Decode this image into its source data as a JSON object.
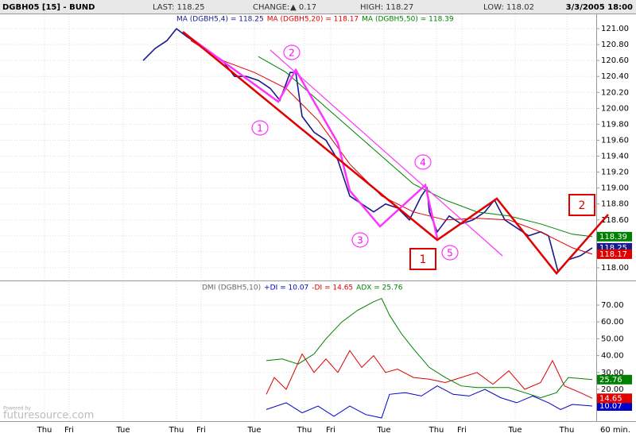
{
  "header": {
    "symbol": "DGBH05 [15] - BUND",
    "last": "LAST: 118.25",
    "change_label": "CHANGE:",
    "change": "▲ 0.17",
    "high": "HIGH: 118.27",
    "low": "LOW: 118.02",
    "datetime": "3/3/2005 18:00",
    "interval": "60 min."
  },
  "watermark": {
    "small": "Powered by",
    "brand": "futuresource.com"
  },
  "annotations": {
    "circled": [
      "1",
      "2",
      "3",
      "4",
      "5"
    ],
    "boxed": [
      "1",
      "2"
    ]
  },
  "chart_data": [
    {
      "type": "line",
      "grid": true,
      "xlim": [
        0,
        750
      ],
      "ylim": [
        117.85,
        121.18
      ],
      "xticks": [
        {
          "value": 56,
          "label": "Thu"
        },
        {
          "value": 87,
          "label": "Fri"
        },
        {
          "value": 155,
          "label": "Tue"
        },
        {
          "value": 222,
          "label": "Thu"
        },
        {
          "value": 253,
          "label": "Fri"
        },
        {
          "value": 320,
          "label": "Tue"
        },
        {
          "value": 383,
          "label": "Thu"
        },
        {
          "value": 416,
          "label": "Fri"
        },
        {
          "value": 483,
          "label": "Tue"
        },
        {
          "value": 549,
          "label": "Thu"
        },
        {
          "value": 581,
          "label": "Fri"
        },
        {
          "value": 648,
          "label": "Tue"
        },
        {
          "value": 713,
          "label": "Thu"
        }
      ],
      "yticks": [
        {
          "value": 118,
          "label": "118.00"
        },
        {
          "value": 118.2,
          "label": "118.20"
        },
        {
          "value": 118.4,
          "label": "118.40"
        },
        {
          "value": 118.6,
          "label": "118.60"
        },
        {
          "value": 118.8,
          "label": "118.80"
        },
        {
          "value": 119,
          "label": "119.00"
        },
        {
          "value": 119.2,
          "label": "119.20"
        },
        {
          "value": 119.4,
          "label": "119.40"
        },
        {
          "value": 119.6,
          "label": "119.60"
        },
        {
          "value": 119.8,
          "label": "119.80"
        },
        {
          "value": 120,
          "label": "120.00"
        },
        {
          "value": 120.2,
          "label": "120.20"
        },
        {
          "value": 120.4,
          "label": "120.40"
        },
        {
          "value": 120.6,
          "label": "120.60"
        },
        {
          "value": 120.8,
          "label": "120.80"
        },
        {
          "value": 121,
          "label": "121.00"
        }
      ],
      "series": [
        {
          "name": "MA (DGBH5,4) = 118.25",
          "color": "#1a1a8c",
          "last_label": "118.25",
          "x": [
            180,
            195,
            210,
            222,
            235,
            250,
            265,
            280,
            295,
            310,
            325,
            340,
            352,
            365,
            372,
            380,
            395,
            410,
            425,
            440,
            455,
            470,
            485,
            500,
            515,
            530,
            537,
            540,
            550,
            565,
            580,
            595,
            610,
            622,
            635,
            650,
            665,
            680,
            690,
            702,
            715,
            730,
            745
          ],
          "values": [
            120.6,
            120.75,
            120.85,
            121.0,
            120.9,
            120.8,
            120.7,
            120.6,
            120.4,
            120.4,
            120.35,
            120.25,
            120.1,
            120.45,
            120.45,
            119.9,
            119.7,
            119.6,
            119.35,
            118.9,
            118.8,
            118.7,
            118.8,
            118.75,
            118.6,
            118.9,
            119.0,
            118.7,
            118.45,
            118.65,
            118.55,
            118.6,
            118.7,
            118.85,
            118.6,
            118.5,
            118.4,
            118.45,
            118.4,
            117.95,
            118.1,
            118.15,
            118.25
          ]
        },
        {
          "name": "MA (DGBH5,20) = 118.17",
          "color": "#e00000",
          "last_label": "118.17",
          "x": [
            240,
            280,
            320,
            360,
            400,
            440,
            480,
            520,
            560,
            600,
            640,
            680,
            720,
            745
          ],
          "values": [
            120.85,
            120.6,
            120.45,
            120.25,
            119.85,
            119.3,
            118.9,
            118.7,
            118.6,
            118.62,
            118.6,
            118.45,
            118.25,
            118.17
          ]
        },
        {
          "name": "MA (DGBH5,50) = 118.39",
          "color": "#008000",
          "last_label": "118.39",
          "x": [
            325,
            360,
            400,
            440,
            480,
            520,
            560,
            600,
            640,
            680,
            720,
            745
          ],
          "values": [
            120.65,
            120.45,
            120.1,
            119.75,
            119.4,
            119.05,
            118.85,
            118.7,
            118.65,
            118.55,
            118.42,
            118.39
          ]
        }
      ]
    },
    {
      "type": "line",
      "grid": true,
      "title": "DMI (DGBH5,10)",
      "xlim": [
        0,
        750
      ],
      "ylim": [
        1.1,
        83.7
      ],
      "yticks": [
        {
          "value": 20,
          "label": "20.00"
        },
        {
          "value": 30,
          "label": "30.00"
        },
        {
          "value": 40,
          "label": "40.00"
        },
        {
          "value": 50,
          "label": "50.00"
        },
        {
          "value": 60,
          "label": "60.00"
        },
        {
          "value": 70,
          "label": "70.00"
        }
      ],
      "series": [
        {
          "name": "+DI = 10.07",
          "color": "#0000cc",
          "last_label": "10.07",
          "x": [
            335,
            360,
            380,
            400,
            420,
            440,
            460,
            480,
            490,
            510,
            530,
            550,
            570,
            590,
            610,
            630,
            650,
            670,
            690,
            705,
            720,
            745
          ],
          "values": [
            8,
            12,
            6,
            10,
            4,
            10,
            5,
            3,
            17,
            18,
            16,
            22,
            17,
            16,
            20,
            15,
            12,
            16,
            12,
            8,
            11,
            10.07
          ]
        },
        {
          "name": "-DI = 14.65",
          "color": "#e00000",
          "last_label": "14.65",
          "x": [
            335,
            345,
            360,
            380,
            395,
            410,
            425,
            440,
            455,
            470,
            485,
            500,
            520,
            540,
            560,
            580,
            600,
            620,
            640,
            660,
            680,
            695,
            710,
            730,
            745
          ],
          "values": [
            17,
            27,
            20,
            41,
            30,
            38,
            30,
            43,
            33,
            40,
            30,
            32,
            27,
            26,
            24,
            27,
            30,
            23,
            31,
            20,
            24,
            37,
            22,
            18,
            14.65
          ]
        },
        {
          "name": "ADX = 25.76",
          "color": "#008000",
          "last_label": "25.76",
          "x": [
            335,
            355,
            375,
            395,
            410,
            430,
            450,
            470,
            480,
            490,
            505,
            520,
            540,
            560,
            580,
            600,
            620,
            640,
            660,
            680,
            700,
            715,
            745
          ],
          "values": [
            37,
            38,
            35,
            41,
            50,
            60,
            67,
            72,
            74,
            64,
            53,
            44,
            33,
            27,
            22,
            21,
            21,
            21,
            18,
            15,
            18,
            27,
            25.76
          ]
        }
      ]
    }
  ]
}
